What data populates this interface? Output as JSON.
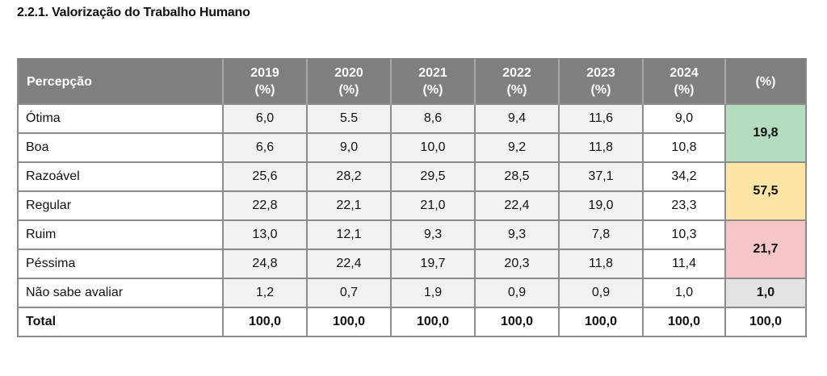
{
  "title": "2.2.1. Valorização do Trabalho Humano",
  "table": {
    "label_header": "Percepção",
    "years": [
      "2019",
      "2020",
      "2021",
      "2022",
      "2023",
      "2024"
    ],
    "unit": "(%)",
    "group_header": "(%)",
    "rows": [
      {
        "label": "Ótima",
        "values": [
          "6,0",
          "5.5",
          "8,6",
          "9,4",
          "11,6",
          "9,0"
        ]
      },
      {
        "label": "Boa",
        "values": [
          "6,6",
          "9,0",
          "10,0",
          "9,2",
          "11,8",
          "10,8"
        ]
      },
      {
        "label": "Razoável",
        "values": [
          "25,6",
          "28,2",
          "29,5",
          "28,5",
          "37,1",
          "34,2"
        ]
      },
      {
        "label": "Regular",
        "values": [
          "22,8",
          "22,1",
          "21,0",
          "22,4",
          "19,0",
          "23,3"
        ]
      },
      {
        "label": "Ruim",
        "values": [
          "13,0",
          "12,1",
          "9,3",
          "9,3",
          "7,8",
          "10,3"
        ]
      },
      {
        "label": "Péssima",
        "values": [
          "24,8",
          "22,4",
          "19,7",
          "20,3",
          "11,8",
          "11,4"
        ]
      },
      {
        "label": "Não sabe avaliar",
        "values": [
          "1,2",
          "0,7",
          "1,9",
          "0,9",
          "0,9",
          "1,0"
        ]
      }
    ],
    "groups": [
      {
        "value": "19,8",
        "color": "#b4ddbf"
      },
      {
        "value": "57,5",
        "color": "#fde5a6"
      },
      {
        "value": "21,7",
        "color": "#f6c6c9"
      },
      {
        "value": "1,0",
        "color": "#e3e3e3"
      }
    ],
    "total": {
      "label": "Total",
      "values": [
        "100,0",
        "100,0",
        "100,0",
        "100,0",
        "100,0",
        "100,0"
      ],
      "group": "100,0"
    }
  }
}
